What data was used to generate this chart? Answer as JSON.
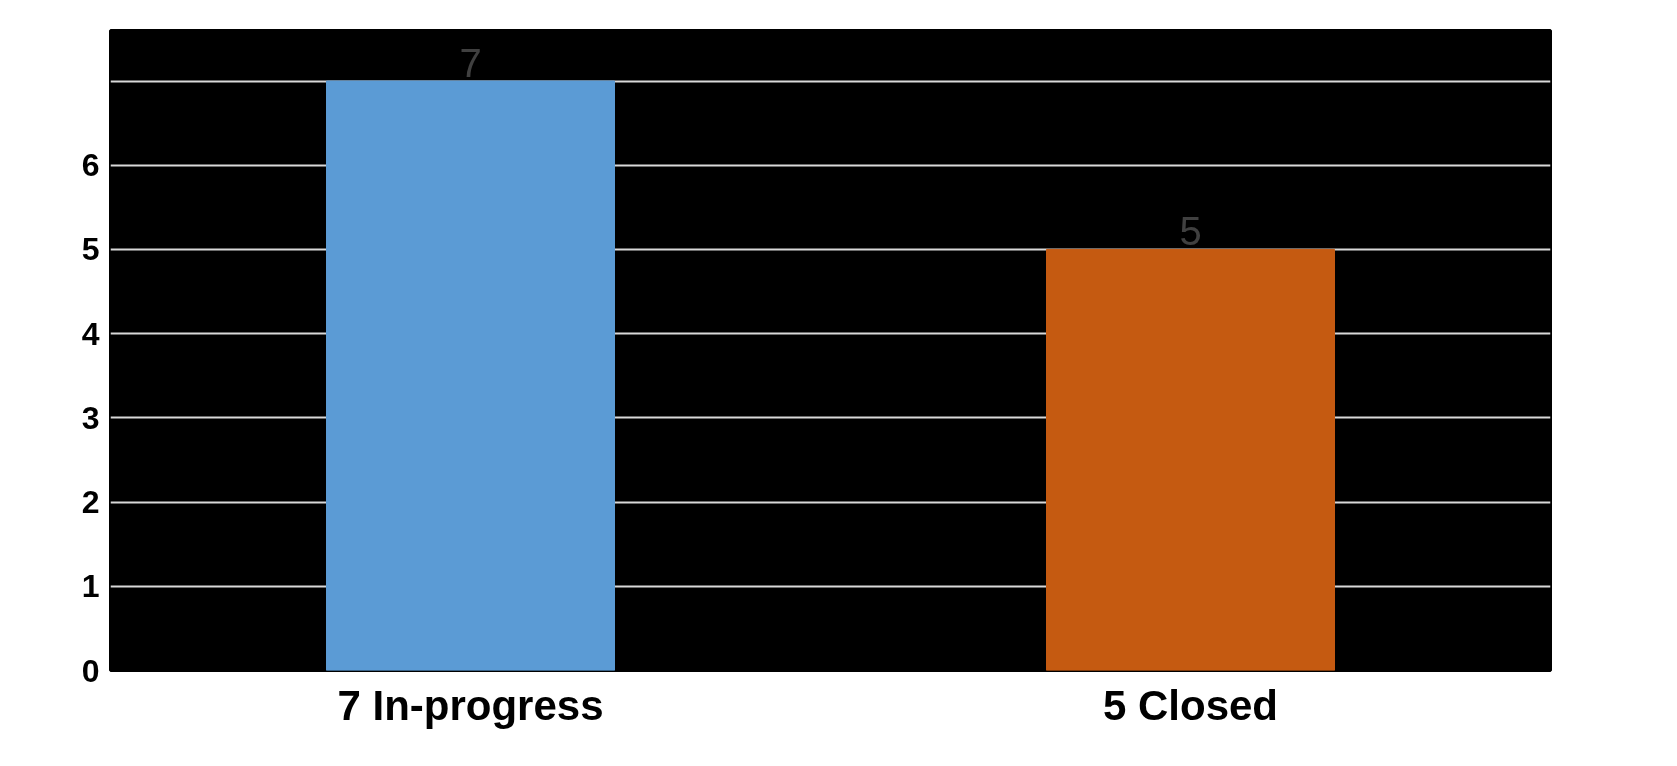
{
  "chart_data": {
    "type": "bar",
    "categories": [
      "7 In-progress",
      "5 Closed"
    ],
    "values": [
      7,
      5
    ],
    "colors": [
      "#5b9bd5",
      "#c55a11"
    ],
    "ylim": [
      0,
      7.6
    ],
    "yticks": [
      0,
      1,
      2,
      3,
      4,
      5,
      6,
      {
        "value": 7,
        "label": null
      }
    ],
    "grid": "y",
    "data_labels": true
  }
}
